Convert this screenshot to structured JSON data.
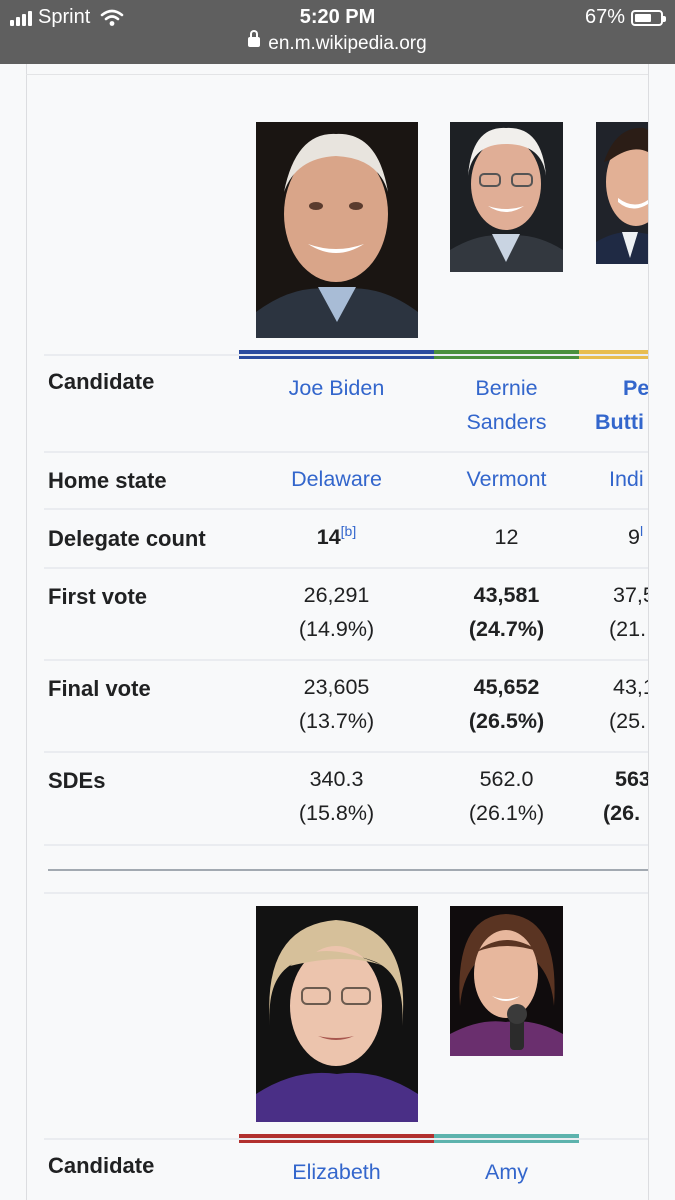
{
  "status_bar": {
    "carrier": "Sprint",
    "time": "5:20 PM",
    "battery": "67%",
    "battery_level": 0.67,
    "url": "en.m.wikipedia.org"
  },
  "section1": {
    "candidates": [
      {
        "name_line1": "Joe Biden",
        "name_line2": "",
        "color": "#2a4a9e",
        "home_state": "Delaware",
        "delegates": "14",
        "delegates_ref": "[b]",
        "first_vote": "26,291",
        "first_pct": "(14.9%)",
        "final_vote": "23,605",
        "final_pct": "(13.7%)",
        "sdes": "340.3",
        "sdes_pct": "(15.8%)"
      },
      {
        "name_line1": "Bernie",
        "name_line2": "Sanders",
        "color": "#4a8f3c",
        "home_state": "Vermont",
        "delegates": "12",
        "delegates_ref": "",
        "first_vote": "43,581",
        "first_pct": "(24.7%)",
        "final_vote": "45,652",
        "final_pct": "(26.5%)",
        "sdes": "562.0",
        "sdes_pct": "(26.1%)"
      },
      {
        "name_line1": "Pe",
        "name_line2": "Butti",
        "color": "#e8bd4f",
        "home_state": "Indi",
        "delegates": "9",
        "delegates_ref": "l",
        "first_vote": "37,5",
        "first_pct": "(21.",
        "final_vote": "43,1",
        "final_pct": "(25.",
        "sdes": "563",
        "sdes_pct": "(26."
      }
    ],
    "row_labels": {
      "candidate": "Candidate",
      "home_state": "Home state",
      "delegate_count": "Delegate count",
      "first_vote": "First vote",
      "final_vote": "Final vote",
      "sdes": "SDEs"
    }
  },
  "section2": {
    "row_label_candidate": "Candidate",
    "candidates": [
      {
        "name_line1": "Elizabeth",
        "color": "#b2302e"
      },
      {
        "name_line1": "Amy",
        "color": "#5db3ad"
      }
    ]
  }
}
